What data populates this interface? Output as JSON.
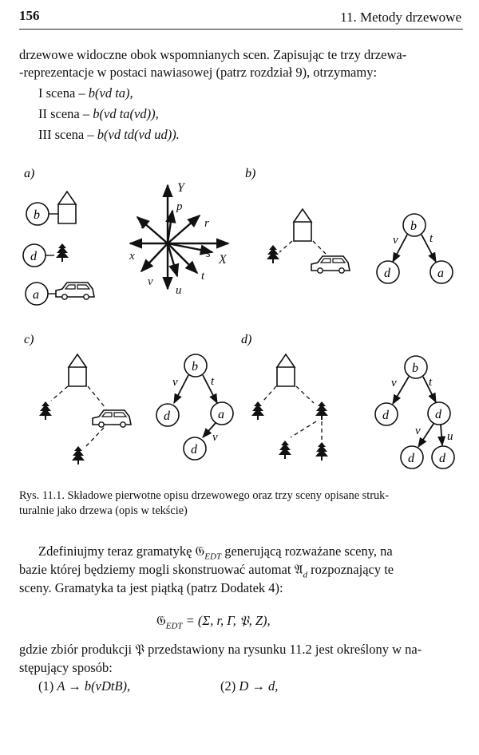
{
  "header": {
    "page_number": "156",
    "chapter": "11. Metody drzewowe"
  },
  "intro": {
    "line1": "drzewowe widoczne obok wspomnianych scen. Zapisując te trzy drzewa-",
    "line2": "-reprezentacje w postaci nawiasowej (patrz rozdział 9), otrzymamy:"
  },
  "scenes": [
    {
      "label": "I scena – ",
      "expr": "b(vd ta),"
    },
    {
      "label": "II scena – ",
      "expr": "b(vd ta(vd)),"
    },
    {
      "label": "III scena – ",
      "expr": "b(vd td(vd ud))."
    }
  ],
  "figure": {
    "panel_labels": [
      "a)",
      "b)",
      "c)",
      "d)"
    ],
    "axis_labels": {
      "Y": "Y",
      "X": "X",
      "p": "p",
      "r": "r",
      "s": "s",
      "t": "t",
      "u": "u",
      "v": "v",
      "x": "x",
      "y": "y"
    },
    "node_labels": {
      "a": "a",
      "b": "b",
      "d": "d"
    },
    "edge_labels": {
      "v": "v",
      "t": "t",
      "u": "u"
    }
  },
  "caption": {
    "line1": "Rys. 11.1. Składowe pierwotne opisu drzewowego oraz trzy sceny opisane struk-",
    "line2": "turalnie jako drzewa (opis w tekście)"
  },
  "body": {
    "p1_line1_pre": "Zdefiniujmy teraz gramatykę ",
    "p1_line1_sym": "𝔊",
    "p1_line1_sub": "EDT",
    "p1_line1_post": " generującą rozważane sceny, na",
    "p1_line2_pre": "bazie której będziemy mogli skonstruować automat ",
    "p1_line2_sym": "𝔄",
    "p1_line2_sub": "d",
    "p1_line2_post": " rozpoznający te",
    "p1_line3": "sceny. Gramatyka ta jest piątką (patrz Dodatek 4):",
    "formula_sym": "𝔊",
    "formula_sub": "EDT",
    "formula_rhs": " = (Σ, r, Γ, 𝔓, Z),",
    "p2_line1_pre": "gdzie zbiór produkcji ",
    "p2_line1_sym": "𝔓",
    "p2_line1_post": " przedstawiony na rysunku 11.2 jest określony w na-",
    "p2_line2": "stępujący sposób:",
    "prod1_num": "(1) ",
    "prod1_expr": "A → b(vDtB),",
    "prod2_num": "(2) ",
    "prod2_expr": "D → d,"
  }
}
